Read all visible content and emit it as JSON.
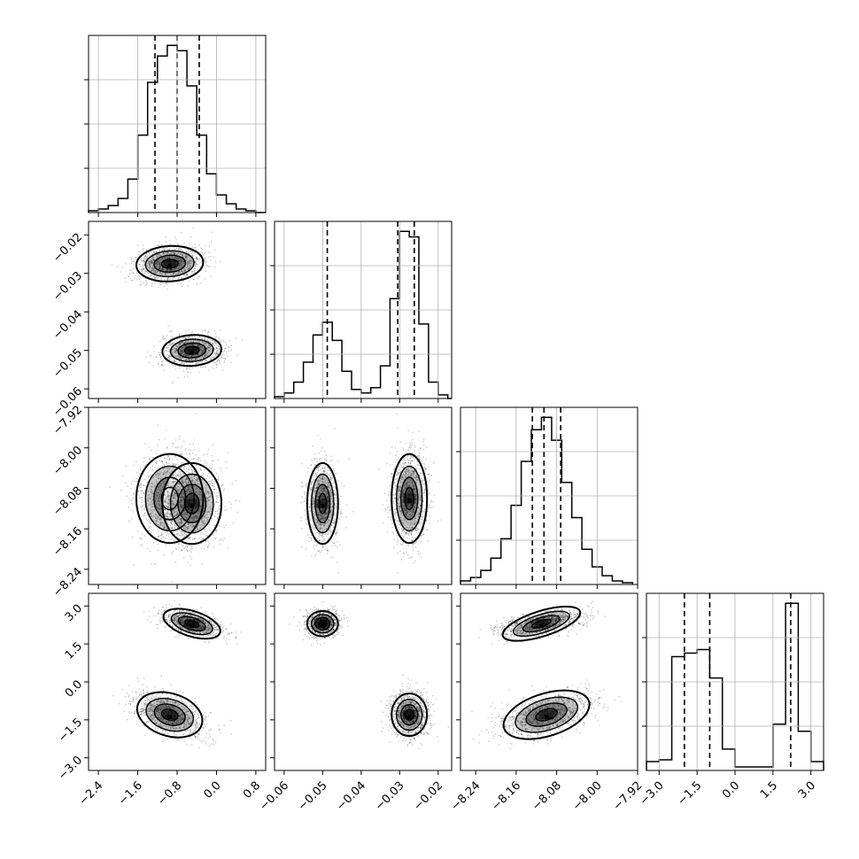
{
  "chart_data": {
    "type": "corner",
    "grid": true,
    "parameters": [
      {
        "range": [
          -2.6,
          1.0
        ],
        "ticks": [
          -2.4,
          -1.6,
          -0.8,
          0.0,
          0.8
        ],
        "tick_labels": [
          "−2.4",
          "−1.6",
          "−0.8",
          "0.0",
          "0.8"
        ]
      },
      {
        "range": [
          -0.0625,
          -0.0165
        ],
        "ticks": [
          -0.06,
          -0.05,
          -0.04,
          -0.03,
          -0.02
        ],
        "tick_labels": [
          "−0.06",
          "−0.05",
          "−0.04",
          "−0.03",
          "−0.02"
        ]
      },
      {
        "range": [
          -8.27,
          -7.92
        ],
        "ticks": [
          -8.24,
          -8.16,
          -8.08,
          -8.0,
          -7.92
        ],
        "tick_labels": [
          "−8.24",
          "−8.16",
          "−8.08",
          "−8.00",
          "−7.92"
        ]
      },
      {
        "range": [
          -3.5,
          3.5
        ],
        "ticks": [
          -3.0,
          -1.5,
          0.0,
          1.5,
          3.0
        ],
        "tick_labels": [
          "−3.0",
          "−1.5",
          "0.0",
          "1.5",
          "3.0"
        ]
      }
    ],
    "quantiles": [
      [
        -1.25,
        -0.8,
        -0.35
      ],
      [
        -0.0488,
        -0.0305,
        -0.0262
      ],
      [
        -8.128,
        -8.105,
        -8.072
      ],
      [
        -2.0,
        -1.0,
        2.2
      ]
    ],
    "histograms": [
      {
        "bin_edges": [
          -2.6,
          -2.4,
          -2.2,
          -2.0,
          -1.8,
          -1.6,
          -1.4,
          -1.2,
          -1.0,
          -0.8,
          -0.6,
          -0.4,
          -0.2,
          0.0,
          0.2,
          0.4,
          0.6,
          0.8,
          1.0
        ],
        "counts": [
          1,
          2,
          4,
          8,
          19,
          44,
          74,
          89,
          95,
          92,
          72,
          44,
          22,
          10,
          5,
          2,
          1,
          0
        ]
      },
      {
        "bin_edges": [
          -0.0625,
          -0.06,
          -0.0575,
          -0.055,
          -0.0525,
          -0.05,
          -0.0475,
          -0.045,
          -0.0425,
          -0.04,
          -0.0375,
          -0.035,
          -0.0325,
          -0.03,
          -0.0275,
          -0.025,
          -0.0225,
          -0.02,
          -0.0175,
          -0.0165
        ],
        "counts": [
          1,
          3,
          9,
          20,
          35,
          42,
          32,
          15,
          5,
          3,
          6,
          18,
          55,
          92,
          89,
          41,
          9,
          2,
          0
        ]
      },
      {
        "bin_edges": [
          -8.27,
          -8.25,
          -8.23,
          -8.21,
          -8.19,
          -8.17,
          -8.15,
          -8.13,
          -8.11,
          -8.09,
          -8.07,
          -8.05,
          -8.03,
          -8.01,
          -7.99,
          -7.97,
          -7.95,
          -7.93
        ],
        "counts": [
          2,
          4,
          8,
          15,
          26,
          45,
          70,
          88,
          95,
          82,
          58,
          38,
          20,
          10,
          5,
          2,
          1
        ]
      },
      {
        "bin_edges": [
          -3.5,
          -3.0,
          -2.5,
          -2.0,
          -1.5,
          -1.0,
          -0.5,
          0.0,
          0.5,
          1.0,
          1.5,
          2.0,
          2.5,
          3.0,
          3.5
        ],
        "counts": [
          5,
          6,
          64,
          66,
          68,
          52,
          12,
          2,
          2,
          2,
          26,
          94,
          22,
          5
        ]
      }
    ],
    "clusters": [
      {
        "mean": [
          -0.95,
          -0.0275,
          -8.1,
          -1.3
        ],
        "sd": [
          0.34,
          0.0023,
          0.044,
          0.42
        ],
        "weight": 0.52
      },
      {
        "mean": [
          -0.5,
          -0.05,
          -8.11,
          2.3
        ],
        "sd": [
          0.3,
          0.002,
          0.04,
          0.25
        ],
        "weight": 0.48
      }
    ],
    "pair_correlations": {
      "1-0": 0.1,
      "2-0": 0.0,
      "2-1": 0.0,
      "3-0": -0.5,
      "3-1": 0.0,
      "3-2": 0.5
    }
  }
}
